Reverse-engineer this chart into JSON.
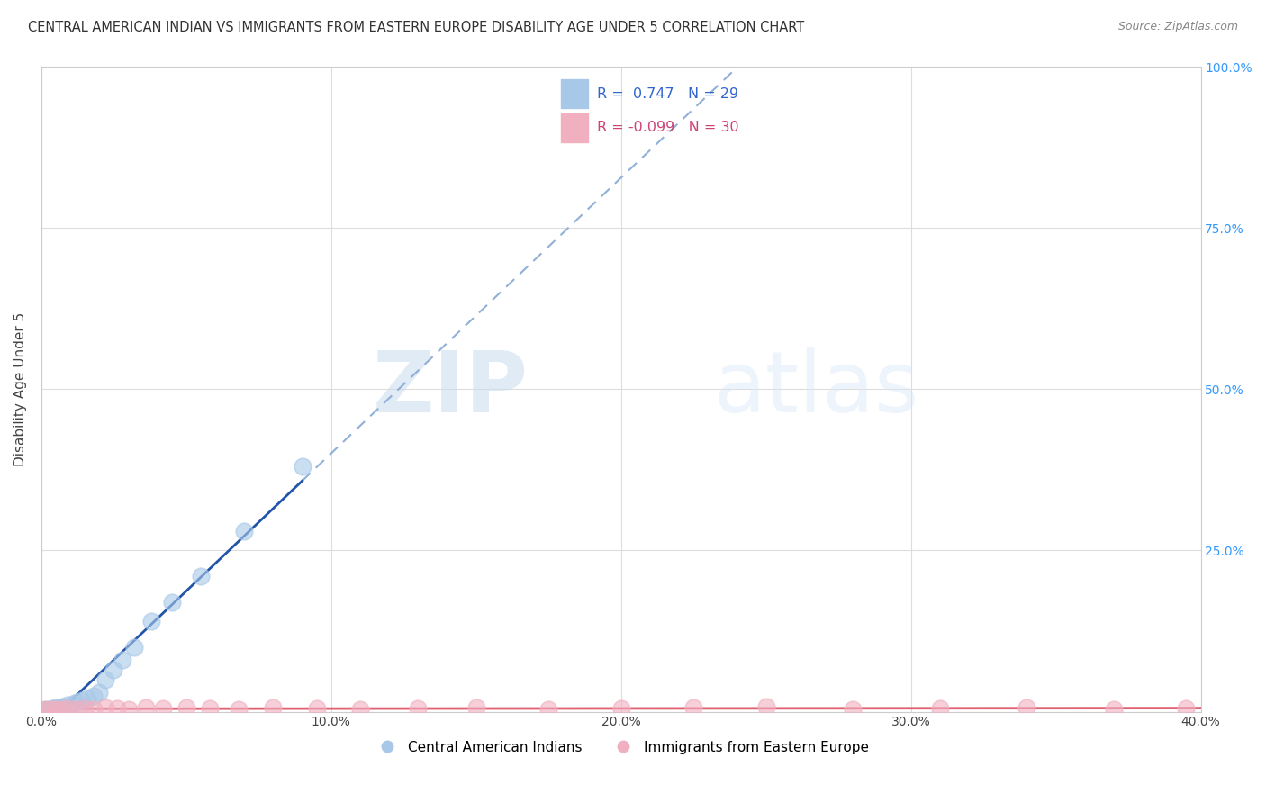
{
  "title": "CENTRAL AMERICAN INDIAN VS IMMIGRANTS FROM EASTERN EUROPE DISABILITY AGE UNDER 5 CORRELATION CHART",
  "source": "Source: ZipAtlas.com",
  "ylabel": "Disability Age Under 5",
  "series1_name": "Central American Indians",
  "series2_name": "Immigrants from Eastern Europe",
  "series1_color": "#a8c8e8",
  "series2_color": "#f0b0c0",
  "series1_line_color": "#2255aa",
  "series2_line_color": "#e06070",
  "series1_dashed_color": "#90b0d8",
  "R1": 0.747,
  "N1": 29,
  "R2": -0.099,
  "N2": 30,
  "xlim": [
    0.0,
    0.4
  ],
  "ylim": [
    0.0,
    1.0
  ],
  "x_ticks": [
    0.0,
    0.1,
    0.2,
    0.3,
    0.4
  ],
  "x_tick_labels": [
    "0.0%",
    "10.0%",
    "20.0%",
    "30.0%",
    "40.0%"
  ],
  "y_ticks": [
    0.0,
    0.25,
    0.5,
    0.75,
    1.0
  ],
  "y_tick_labels_right": [
    "",
    "25.0%",
    "50.0%",
    "75.0%",
    "100.0%"
  ],
  "watermark_zip": "ZIP",
  "watermark_atlas": "atlas",
  "series1_x": [
    0.001,
    0.002,
    0.003,
    0.003,
    0.004,
    0.004,
    0.005,
    0.005,
    0.006,
    0.007,
    0.007,
    0.008,
    0.009,
    0.01,
    0.011,
    0.012,
    0.014,
    0.016,
    0.018,
    0.02,
    0.022,
    0.025,
    0.028,
    0.032,
    0.038,
    0.045,
    0.055,
    0.07,
    0.09
  ],
  "series1_y": [
    0.002,
    0.003,
    0.002,
    0.004,
    0.003,
    0.005,
    0.004,
    0.006,
    0.005,
    0.007,
    0.008,
    0.006,
    0.01,
    0.008,
    0.012,
    0.015,
    0.018,
    0.02,
    0.025,
    0.03,
    0.05,
    0.065,
    0.08,
    0.1,
    0.14,
    0.17,
    0.21,
    0.28,
    0.38
  ],
  "series2_x": [
    0.001,
    0.003,
    0.005,
    0.007,
    0.009,
    0.012,
    0.015,
    0.018,
    0.022,
    0.026,
    0.03,
    0.036,
    0.042,
    0.05,
    0.058,
    0.068,
    0.08,
    0.095,
    0.11,
    0.13,
    0.15,
    0.175,
    0.2,
    0.225,
    0.25,
    0.28,
    0.31,
    0.34,
    0.37,
    0.395
  ],
  "series2_y": [
    0.003,
    0.004,
    0.003,
    0.004,
    0.005,
    0.003,
    0.005,
    0.004,
    0.006,
    0.005,
    0.004,
    0.006,
    0.005,
    0.007,
    0.005,
    0.004,
    0.006,
    0.005,
    0.004,
    0.005,
    0.006,
    0.004,
    0.005,
    0.006,
    0.008,
    0.004,
    0.005,
    0.006,
    0.004,
    0.005
  ],
  "background_color": "#ffffff",
  "grid_color": "#dddddd",
  "title_fontsize": 10.5,
  "ylabel_fontsize": 11,
  "tick_fontsize": 10,
  "legend_fontsize": 11,
  "scatter_size": 180,
  "scatter_alpha": 0.6,
  "scatter_linewidth": 1.2
}
